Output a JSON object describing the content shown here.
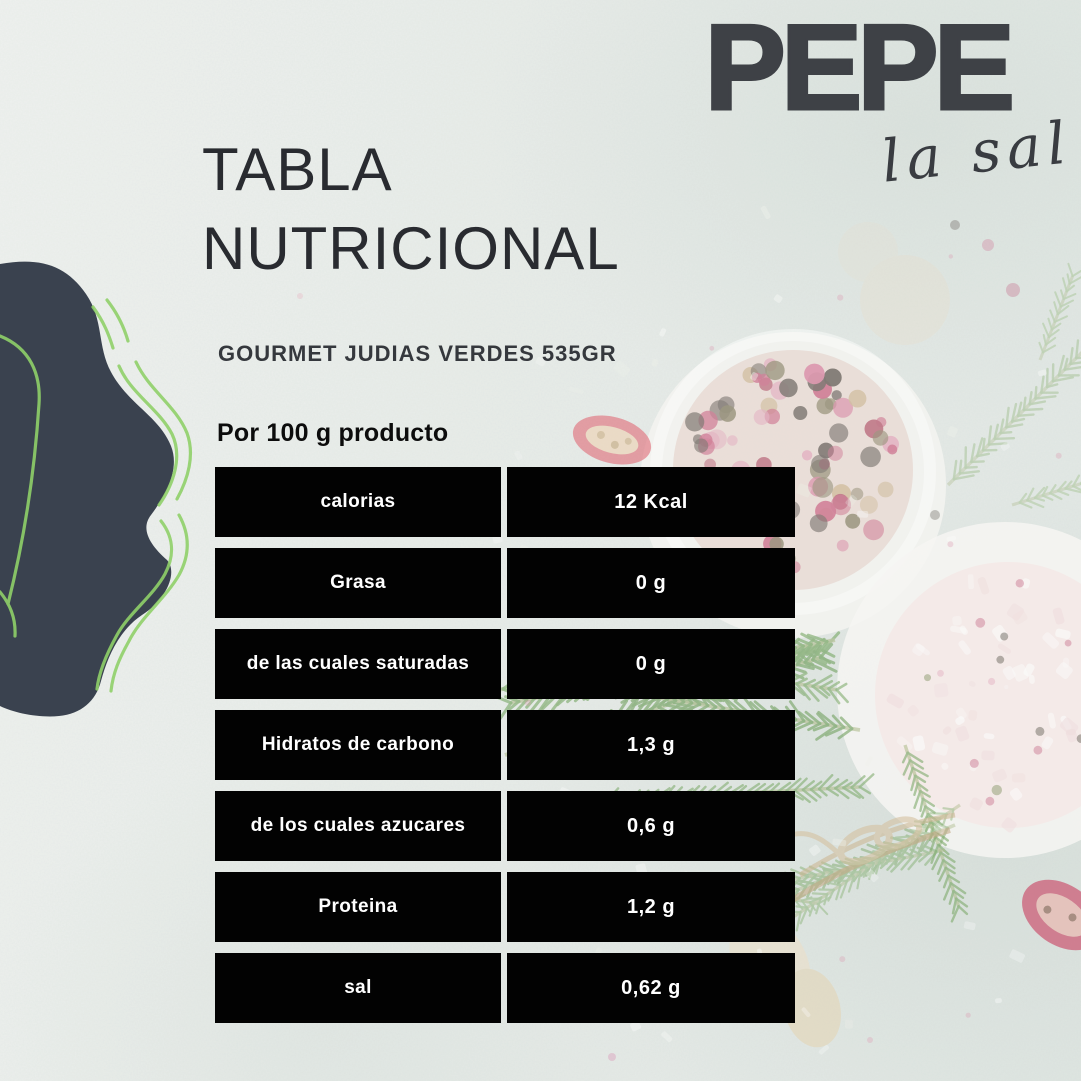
{
  "brand": {
    "name": "PEPE",
    "tagline": "la sal"
  },
  "header": {
    "title_line1": "TABLA",
    "title_line2": "NUTRICIONAL",
    "product_name": "GOURMET JUDIAS VERDES 535GR",
    "serving_heading": "Por 100 g producto"
  },
  "nutrition_table": {
    "rows": [
      {
        "label": "calorias",
        "value": "12 Kcal"
      },
      {
        "label": "Grasa",
        "value": "0 g"
      },
      {
        "label": "de las cuales saturadas",
        "value": "0 g"
      },
      {
        "label": "Hidratos de carbono",
        "value": "1,3 g"
      },
      {
        "label": "de los cuales azucares",
        "value": "0,6 g"
      },
      {
        "label": "Proteina",
        "value": "1,2 g"
      },
      {
        "label": "sal",
        "value": "0,62 g"
      }
    ]
  },
  "colors": {
    "background": "#e7ebe8",
    "blob": "#3a424f",
    "accent_green": "#8fd069",
    "table_cell_bg": "#000000",
    "table_cell_text": "#ffffff",
    "brand_text": "#3e4146",
    "title_text": "#292b30"
  }
}
